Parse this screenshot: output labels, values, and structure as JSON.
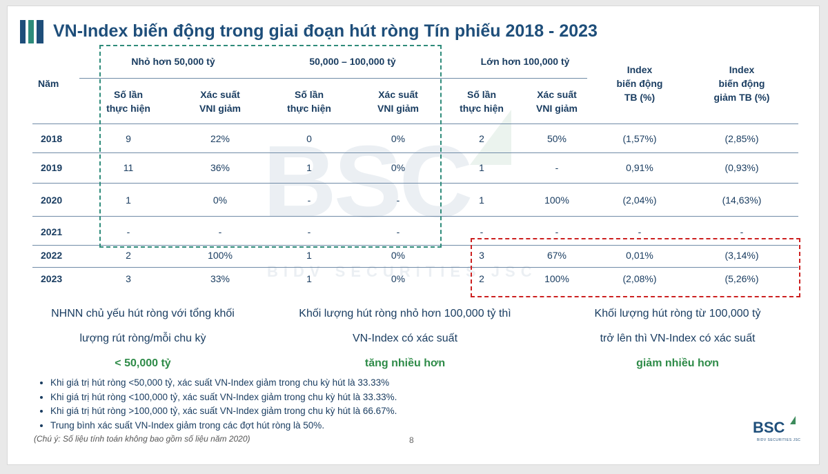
{
  "title": "VN-Index biến động trong giai đoạn hút ròng Tín phiếu 2018 - 2023",
  "colors": {
    "navy": "#1e4e7a",
    "green_accent": "#2e8b48",
    "green_box": "#2e8b7a",
    "red_box": "#cc1f1f"
  },
  "watermark": {
    "brand": "BSC",
    "tagline": "BIDV SECURITIES JSC"
  },
  "table": {
    "year_header": "Năm",
    "groups": [
      "Nhỏ hơn 50,000 tỷ",
      "50,000 – 100,000 tỷ",
      "Lớn hơn 100,000 tỷ"
    ],
    "sub_count": [
      "Số lần",
      "thực hiện"
    ],
    "sub_prob": [
      "Xác suất",
      "VNI giảm"
    ],
    "avg_header": [
      "Index",
      "biến động",
      "TB (%)"
    ],
    "avg_down_header": [
      "Index",
      "biến động",
      "giảm TB (%)"
    ],
    "rows": [
      [
        "2018",
        "9",
        "22%",
        "0",
        "0%",
        "2",
        "50%",
        "(1,57%)",
        "(2,85%)"
      ],
      [
        "2019",
        "11",
        "36%",
        "1",
        "0%",
        "1",
        "-",
        "0,91%",
        "(0,93%)"
      ],
      [
        "2020",
        "1",
        "0%",
        "-",
        "-",
        "1",
        "100%",
        "(2,04%)",
        "(14,63%)"
      ],
      [
        "2021",
        "-",
        "-",
        "-",
        "-",
        "-",
        "-",
        "-",
        "-"
      ],
      [
        "2022",
        "2",
        "100%",
        "1",
        "0%",
        "3",
        "67%",
        "0,01%",
        "(3,14%)"
      ],
      [
        "2023",
        "3",
        "33%",
        "1",
        "0%",
        "2",
        "100%",
        "(2,08%)",
        "(5,26%)"
      ]
    ]
  },
  "notes": [
    {
      "lines": [
        "NHNN chủ yếu hút ròng với tổng khối",
        "lượng rút ròng/mỗi chu kỳ"
      ],
      "highlight": "< 50,000 tỷ"
    },
    {
      "lines": [
        "Khối lượng hút ròng nhỏ hơn 100,000 tỷ thì",
        "VN-Index có xác suất"
      ],
      "highlight": "tăng nhiều hơn"
    },
    {
      "lines": [
        "Khối lượng hút ròng từ 100,000 tỷ",
        "trở lên thì VN-Index có xác suất"
      ],
      "highlight": "giảm nhiều hơn"
    }
  ],
  "bullets": [
    "Khi giá trị hút ròng <50,000 tỷ, xác suất VN-Index giảm trong chu kỳ hút là 33.33%",
    "Khi giá trị hút ròng <100,000 tỷ, xác suất VN-Index giảm trong chu kỳ hút là 33.33%.",
    "Khi giá trị hút ròng >100,000 tỷ, xác suất VN-Index giảm trong chu kỳ hút là 66.67%.",
    "Trung bình xác suất VN-Index giảm trong các đợt hút ròng là 50%."
  ],
  "footnote": "(Chú ý: Số liệu tính toán không bao gồm số liệu năm 2020)",
  "page_number": "8",
  "footer_logo": {
    "brand": "BSC",
    "tagline": "BIDV SECURITIES JSC"
  }
}
